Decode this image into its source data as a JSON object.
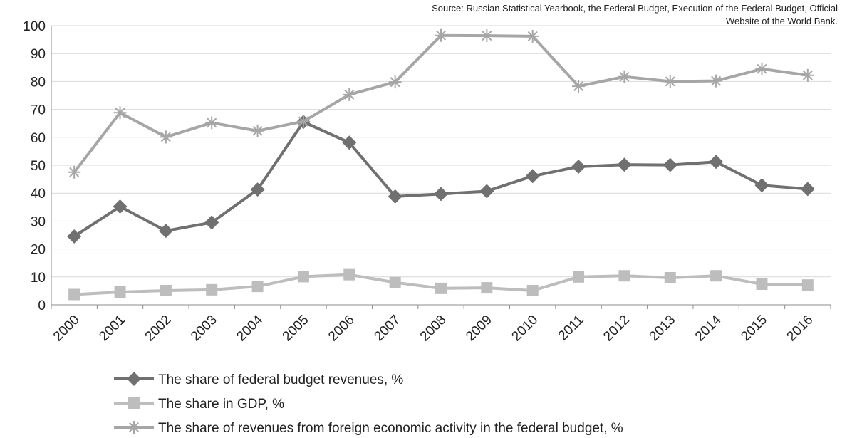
{
  "source": "Source: Russian Statistical Yearbook, the Federal Budget, Execution of the Federal Budget, Official Website of the World Bank.",
  "chart_data": {
    "type": "line",
    "x": [
      "2000",
      "2001",
      "2002",
      "2003",
      "2004",
      "2005",
      "2006",
      "2007",
      "2008",
      "2009",
      "2010",
      "2011",
      "2012",
      "2013",
      "2014",
      "2015",
      "2016"
    ],
    "ylim": [
      0,
      100
    ],
    "yticks": [
      "0",
      "10",
      "20",
      "30",
      "40",
      "50",
      "60",
      "70",
      "80",
      "90",
      "100"
    ],
    "grid": true,
    "legend_position": "bottom",
    "series": [
      {
        "name": "The share of federal budget revenues, %",
        "marker": "diamond",
        "color": "#707070",
        "values": [
          24.5,
          35.2,
          26.5,
          29.5,
          41.3,
          65.5,
          58.1,
          38.8,
          39.7,
          40.7,
          46.1,
          49.5,
          50.2,
          50.1,
          51.2,
          42.8,
          41.5
        ]
      },
      {
        "name": "The share in GDP, %",
        "marker": "square",
        "color": "#bdbdbd",
        "values": [
          3.7,
          4.6,
          5.1,
          5.4,
          6.6,
          10.1,
          10.8,
          8.0,
          5.9,
          6.1,
          5.1,
          10.0,
          10.4,
          9.7,
          10.4,
          7.4,
          7.1
        ]
      },
      {
        "name": "The share of revenues from foreign economic activity in the federal budget, %",
        "marker": "star",
        "color": "#a6a6a6",
        "values": [
          47.5,
          68.8,
          60.1,
          65.2,
          62.3,
          65.7,
          75.3,
          79.8,
          96.5,
          96.4,
          96.2,
          78.3,
          81.7,
          80.0,
          80.2,
          84.5,
          82.2
        ]
      }
    ]
  }
}
